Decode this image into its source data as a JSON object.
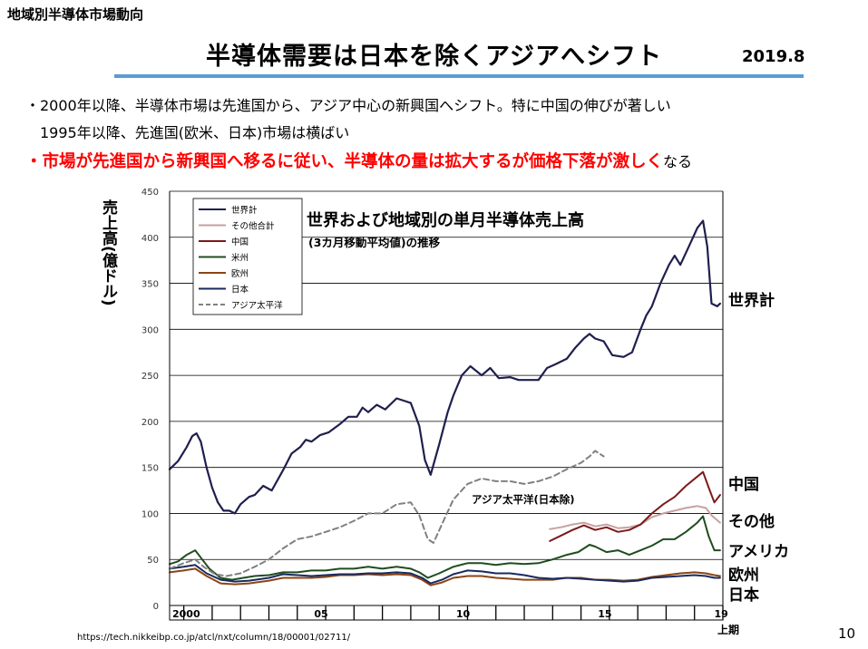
{
  "header": {
    "section_title": "地域別半導体市場動向",
    "main_title": "半導体需要は日本を除くアジアへシフト",
    "date": "2019.8"
  },
  "bullets": [
    "・2000年以降、半導体市場は先進国から、アジア中心の新興国へシフト。特に中国の伸びが著しい",
    "1995年以降、先進国(欧米、日本)市場は横ばい",
    "・市場が先進国から新興国へ移るに従い、半導体の量は拡大するが価格下落が激しく",
    "なる"
  ],
  "footer": {
    "source": "https://tech.nikkeibp.co.jp/atcl/nxt/column/18/00001/02711/",
    "page": "10"
  },
  "colors": {
    "title_rule": "#5b9bd5",
    "emphasis": "#ff0000",
    "world": "#1f1f4e",
    "other": "#c9a0a0",
    "china": "#7b1a1a",
    "usa": "#1f4d1f",
    "europe": "#8b4513",
    "japan": "#1a2a5e",
    "asia_pacific": "#808080"
  },
  "chart_data": {
    "type": "line",
    "title": "世界および地域別の単月半導体売上高",
    "subtitle": "(3カ月移動平均値)の推移",
    "ylabel": "売上高(億ドル)",
    "ylim": [
      0,
      450
    ],
    "yticks": [
      0,
      50,
      100,
      150,
      200,
      250,
      300,
      350,
      400,
      450
    ],
    "xlim": [
      2000,
      2019.5
    ],
    "xtick_labels": [
      {
        "x": 2000,
        "label": "2000"
      },
      {
        "x": 2005,
        "label": "05"
      },
      {
        "x": 2010,
        "label": "10"
      },
      {
        "x": 2015,
        "label": "15"
      },
      {
        "x": 2019.1,
        "label": "19"
      }
    ],
    "x_unit_label": "上期",
    "legend": {
      "position": "top-left",
      "entries": [
        "世界計",
        "その他合計",
        "中国",
        "米州",
        "欧州",
        "日本",
        "アジア太平洋"
      ]
    },
    "annotations": {
      "asia_pacific_label": "アジア太平洋(日本除)"
    },
    "series": [
      {
        "key": "world",
        "name": "世界計",
        "end_label": "世界計",
        "style": "solid",
        "width": 2.2,
        "points": [
          [
            2000,
            148
          ],
          [
            2000.3,
            157
          ],
          [
            2000.6,
            172
          ],
          [
            2000.8,
            184
          ],
          [
            2000.95,
            187
          ],
          [
            2001.1,
            178
          ],
          [
            2001.3,
            150
          ],
          [
            2001.5,
            128
          ],
          [
            2001.7,
            112
          ],
          [
            2001.9,
            103
          ],
          [
            2002.1,
            103
          ],
          [
            2002.3,
            100
          ],
          [
            2002.5,
            110
          ],
          [
            2002.8,
            118
          ],
          [
            2003,
            120
          ],
          [
            2003.3,
            130
          ],
          [
            2003.6,
            125
          ],
          [
            2004,
            147
          ],
          [
            2004.3,
            165
          ],
          [
            2004.6,
            172
          ],
          [
            2004.8,
            180
          ],
          [
            2005,
            178
          ],
          [
            2005.3,
            185
          ],
          [
            2005.6,
            188
          ],
          [
            2006,
            197
          ],
          [
            2006.3,
            205
          ],
          [
            2006.6,
            205
          ],
          [
            2006.8,
            215
          ],
          [
            2007,
            210
          ],
          [
            2007.3,
            218
          ],
          [
            2007.6,
            213
          ],
          [
            2008,
            225
          ],
          [
            2008.3,
            222
          ],
          [
            2008.5,
            220
          ],
          [
            2008.8,
            195
          ],
          [
            2009,
            158
          ],
          [
            2009.2,
            142
          ],
          [
            2009.5,
            175
          ],
          [
            2009.8,
            210
          ],
          [
            2010,
            228
          ],
          [
            2010.3,
            250
          ],
          [
            2010.6,
            260
          ],
          [
            2010.8,
            255
          ],
          [
            2011,
            250
          ],
          [
            2011.3,
            258
          ],
          [
            2011.6,
            247
          ],
          [
            2012,
            248
          ],
          [
            2012.3,
            245
          ],
          [
            2012.6,
            245
          ],
          [
            2013,
            245
          ],
          [
            2013.3,
            258
          ],
          [
            2013.6,
            262
          ],
          [
            2014,
            268
          ],
          [
            2014.3,
            280
          ],
          [
            2014.6,
            290
          ],
          [
            2014.8,
            295
          ],
          [
            2015,
            290
          ],
          [
            2015.3,
            287
          ],
          [
            2015.6,
            272
          ],
          [
            2016,
            270
          ],
          [
            2016.3,
            275
          ],
          [
            2016.6,
            300
          ],
          [
            2016.8,
            315
          ],
          [
            2017,
            325
          ],
          [
            2017.3,
            350
          ],
          [
            2017.6,
            370
          ],
          [
            2017.8,
            380
          ],
          [
            2018,
            370
          ],
          [
            2018.3,
            390
          ],
          [
            2018.6,
            410
          ],
          [
            2018.8,
            418
          ],
          [
            2018.95,
            390
          ],
          [
            2019.1,
            328
          ],
          [
            2019.3,
            325
          ],
          [
            2019.4,
            328
          ]
        ]
      },
      {
        "key": "other",
        "name": "その他合計",
        "end_label": "その他",
        "style": "solid",
        "width": 2,
        "points": [
          [
            2013.4,
            83
          ],
          [
            2013.8,
            85
          ],
          [
            2014.2,
            88
          ],
          [
            2014.6,
            90
          ],
          [
            2015,
            86
          ],
          [
            2015.4,
            88
          ],
          [
            2015.8,
            84
          ],
          [
            2016.2,
            85
          ],
          [
            2016.6,
            88
          ],
          [
            2017,
            96
          ],
          [
            2017.4,
            100
          ],
          [
            2017.8,
            103
          ],
          [
            2018.2,
            106
          ],
          [
            2018.6,
            108
          ],
          [
            2018.9,
            106
          ],
          [
            2019.1,
            98
          ],
          [
            2019.4,
            90
          ]
        ]
      },
      {
        "key": "china",
        "name": "中国",
        "end_label": "中国",
        "style": "solid",
        "width": 2,
        "points": [
          [
            2013.4,
            70
          ],
          [
            2013.8,
            76
          ],
          [
            2014.2,
            82
          ],
          [
            2014.6,
            87
          ],
          [
            2015,
            82
          ],
          [
            2015.4,
            85
          ],
          [
            2015.8,
            80
          ],
          [
            2016.2,
            82
          ],
          [
            2016.6,
            88
          ],
          [
            2017,
            100
          ],
          [
            2017.4,
            110
          ],
          [
            2017.8,
            118
          ],
          [
            2018.2,
            130
          ],
          [
            2018.6,
            140
          ],
          [
            2018.8,
            145
          ],
          [
            2019,
            128
          ],
          [
            2019.2,
            112
          ],
          [
            2019.4,
            120
          ]
        ]
      },
      {
        "key": "usa",
        "name": "米州",
        "end_label": "アメリカ",
        "style": "solid",
        "width": 2,
        "points": [
          [
            2000,
            45
          ],
          [
            2000.3,
            48
          ],
          [
            2000.6,
            55
          ],
          [
            2000.9,
            60
          ],
          [
            2001.1,
            52
          ],
          [
            2001.4,
            40
          ],
          [
            2001.8,
            30
          ],
          [
            2002.2,
            28
          ],
          [
            2002.6,
            30
          ],
          [
            2003,
            32
          ],
          [
            2003.5,
            33
          ],
          [
            2004,
            36
          ],
          [
            2004.5,
            36
          ],
          [
            2005,
            38
          ],
          [
            2005.5,
            38
          ],
          [
            2006,
            40
          ],
          [
            2006.5,
            40
          ],
          [
            2007,
            42
          ],
          [
            2007.5,
            40
          ],
          [
            2008,
            42
          ],
          [
            2008.5,
            40
          ],
          [
            2008.8,
            36
          ],
          [
            2009.1,
            30
          ],
          [
            2009.5,
            35
          ],
          [
            2010,
            42
          ],
          [
            2010.5,
            46
          ],
          [
            2011,
            46
          ],
          [
            2011.5,
            44
          ],
          [
            2012,
            46
          ],
          [
            2012.5,
            45
          ],
          [
            2013,
            46
          ],
          [
            2013.5,
            50
          ],
          [
            2014,
            55
          ],
          [
            2014.4,
            58
          ],
          [
            2014.8,
            66
          ],
          [
            2015,
            64
          ],
          [
            2015.4,
            58
          ],
          [
            2015.8,
            60
          ],
          [
            2016.2,
            55
          ],
          [
            2016.6,
            60
          ],
          [
            2017,
            65
          ],
          [
            2017.4,
            72
          ],
          [
            2017.8,
            72
          ],
          [
            2018.2,
            80
          ],
          [
            2018.6,
            90
          ],
          [
            2018.8,
            97
          ],
          [
            2019,
            75
          ],
          [
            2019.2,
            60
          ],
          [
            2019.4,
            60
          ]
        ]
      },
      {
        "key": "europe",
        "name": "欧州",
        "end_label": "欧州",
        "style": "solid",
        "width": 2,
        "points": [
          [
            2000,
            36
          ],
          [
            2000.5,
            38
          ],
          [
            2000.9,
            40
          ],
          [
            2001.3,
            32
          ],
          [
            2001.8,
            24
          ],
          [
            2002.3,
            23
          ],
          [
            2002.8,
            24
          ],
          [
            2003.5,
            27
          ],
          [
            2004,
            30
          ],
          [
            2004.5,
            30
          ],
          [
            2005,
            30
          ],
          [
            2005.5,
            31
          ],
          [
            2006,
            33
          ],
          [
            2006.5,
            33
          ],
          [
            2007,
            34
          ],
          [
            2007.5,
            33
          ],
          [
            2008,
            34
          ],
          [
            2008.5,
            33
          ],
          [
            2008.9,
            28
          ],
          [
            2009.2,
            22
          ],
          [
            2009.6,
            25
          ],
          [
            2010,
            30
          ],
          [
            2010.5,
            32
          ],
          [
            2011,
            32
          ],
          [
            2011.5,
            30
          ],
          [
            2012,
            29
          ],
          [
            2012.5,
            28
          ],
          [
            2013,
            28
          ],
          [
            2013.5,
            28
          ],
          [
            2014,
            30
          ],
          [
            2014.5,
            30
          ],
          [
            2015,
            28
          ],
          [
            2015.5,
            28
          ],
          [
            2016,
            27
          ],
          [
            2016.5,
            28
          ],
          [
            2017,
            31
          ],
          [
            2017.5,
            33
          ],
          [
            2018,
            35
          ],
          [
            2018.5,
            36
          ],
          [
            2018.9,
            35
          ],
          [
            2019.2,
            33
          ],
          [
            2019.4,
            32
          ]
        ]
      },
      {
        "key": "japan",
        "name": "日本",
        "end_label": "日本",
        "style": "solid",
        "width": 2,
        "points": [
          [
            2000,
            40
          ],
          [
            2000.5,
            42
          ],
          [
            2000.9,
            44
          ],
          [
            2001.3,
            35
          ],
          [
            2001.8,
            28
          ],
          [
            2002.3,
            26
          ],
          [
            2002.8,
            27
          ],
          [
            2003.5,
            30
          ],
          [
            2004,
            34
          ],
          [
            2004.5,
            33
          ],
          [
            2005,
            32
          ],
          [
            2005.5,
            33
          ],
          [
            2006,
            34
          ],
          [
            2006.5,
            34
          ],
          [
            2007,
            35
          ],
          [
            2007.5,
            35
          ],
          [
            2008,
            36
          ],
          [
            2008.5,
            35
          ],
          [
            2008.9,
            30
          ],
          [
            2009.2,
            24
          ],
          [
            2009.6,
            28
          ],
          [
            2010,
            34
          ],
          [
            2010.5,
            38
          ],
          [
            2011,
            37
          ],
          [
            2011.5,
            35
          ],
          [
            2012,
            35
          ],
          [
            2012.5,
            33
          ],
          [
            2013,
            30
          ],
          [
            2013.5,
            29
          ],
          [
            2014,
            30
          ],
          [
            2014.5,
            29
          ],
          [
            2015,
            28
          ],
          [
            2015.5,
            27
          ],
          [
            2016,
            26
          ],
          [
            2016.5,
            27
          ],
          [
            2017,
            30
          ],
          [
            2017.5,
            31
          ],
          [
            2018,
            32
          ],
          [
            2018.5,
            33
          ],
          [
            2018.9,
            32
          ],
          [
            2019.2,
            30
          ],
          [
            2019.4,
            30
          ]
        ]
      },
      {
        "key": "asia_pacific",
        "name": "アジア太平洋",
        "end_label": "",
        "style": "dashed",
        "width": 2,
        "points": [
          [
            2000,
            40
          ],
          [
            2000.5,
            46
          ],
          [
            2000.9,
            50
          ],
          [
            2001.2,
            42
          ],
          [
            2001.6,
            34
          ],
          [
            2002,
            32
          ],
          [
            2002.5,
            35
          ],
          [
            2003,
            42
          ],
          [
            2003.5,
            50
          ],
          [
            2004,
            62
          ],
          [
            2004.5,
            72
          ],
          [
            2005,
            75
          ],
          [
            2005.5,
            80
          ],
          [
            2006,
            85
          ],
          [
            2006.5,
            92
          ],
          [
            2007,
            100
          ],
          [
            2007.5,
            100
          ],
          [
            2008,
            110
          ],
          [
            2008.5,
            112
          ],
          [
            2008.8,
            98
          ],
          [
            2009.1,
            72
          ],
          [
            2009.3,
            68
          ],
          [
            2009.7,
            95
          ],
          [
            2010,
            115
          ],
          [
            2010.5,
            132
          ],
          [
            2011,
            138
          ],
          [
            2011.5,
            135
          ],
          [
            2012,
            135
          ],
          [
            2012.5,
            132
          ],
          [
            2013,
            135
          ],
          [
            2013.5,
            140
          ],
          [
            2014,
            148
          ],
          [
            2014.5,
            155
          ],
          [
            2014.8,
            162
          ],
          [
            2015,
            168
          ],
          [
            2015.3,
            162
          ]
        ]
      }
    ]
  }
}
